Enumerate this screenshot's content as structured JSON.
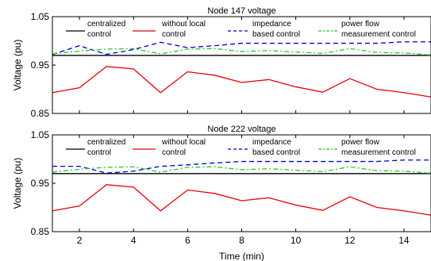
{
  "chart_data": [
    {
      "type": "line",
      "title": "Node 147 voltage",
      "ylabel": "Voltage (pu)",
      "xlabel": "",
      "xlim": [
        1,
        15
      ],
      "ylim": [
        0.85,
        1.05
      ],
      "yticks": [
        0.85,
        0.95,
        1.05
      ],
      "ytick_labels": [
        "0.85",
        "0.95",
        "1.05"
      ],
      "xticks": [
        2,
        4,
        6,
        8,
        10,
        12,
        14
      ],
      "show_xtick_labels": false,
      "grid": false,
      "legend": "top",
      "x": [
        1,
        2,
        3,
        4,
        5,
        6,
        7,
        8,
        9,
        10,
        11,
        12,
        13,
        14,
        15
      ],
      "series": [
        {
          "name": [
            "centralized",
            "control"
          ],
          "color": "#000000",
          "dash": "solid",
          "values": [
            0.97,
            0.97,
            0.97,
            0.97,
            0.97,
            0.97,
            0.97,
            0.97,
            0.97,
            0.97,
            0.97,
            0.97,
            0.97,
            0.97,
            0.97
          ]
        },
        {
          "name": [
            "without local",
            "control"
          ],
          "color": "#e8000b",
          "dash": "solid",
          "values": [
            0.893,
            0.903,
            0.947,
            0.942,
            0.893,
            0.936,
            0.929,
            0.914,
            0.92,
            0.905,
            0.894,
            0.922,
            0.9,
            0.893,
            0.884
          ]
        },
        {
          "name": [
            "impedance",
            "based control"
          ],
          "color": "#0000d0",
          "dash": "dashed",
          "values": [
            0.972,
            0.99,
            0.972,
            0.982,
            0.997,
            0.986,
            0.99,
            0.995,
            0.995,
            0.995,
            0.995,
            0.995,
            0.995,
            0.998,
            0.998
          ]
        },
        {
          "name": [
            "power flow",
            "measurement control"
          ],
          "color": "#22cc22",
          "dash": "dashdot",
          "values": [
            0.973,
            0.979,
            0.983,
            0.984,
            0.973,
            0.983,
            0.984,
            0.978,
            0.98,
            0.977,
            0.974,
            0.984,
            0.976,
            0.975,
            0.971
          ]
        }
      ]
    },
    {
      "type": "line",
      "title": "Node 222 voltage",
      "ylabel": "Voltage (pu)",
      "xlabel": "Time (min)",
      "xlim": [
        1,
        15
      ],
      "ylim": [
        0.85,
        1.05
      ],
      "yticks": [
        0.85,
        0.95,
        1.05
      ],
      "ytick_labels": [
        "0.85",
        "0.95",
        "1.05"
      ],
      "xticks": [
        2,
        4,
        6,
        8,
        10,
        12,
        14
      ],
      "xtick_labels": [
        "2",
        "4",
        "6",
        "8",
        "10",
        "12",
        "14"
      ],
      "show_xtick_labels": true,
      "grid": false,
      "legend": "top",
      "x": [
        1,
        2,
        3,
        4,
        5,
        6,
        7,
        8,
        9,
        10,
        11,
        12,
        13,
        14,
        15
      ],
      "series": [
        {
          "name": [
            "centralized",
            "control"
          ],
          "color": "#000000",
          "dash": "solid",
          "values": [
            0.97,
            0.97,
            0.97,
            0.97,
            0.97,
            0.97,
            0.97,
            0.97,
            0.97,
            0.97,
            0.97,
            0.97,
            0.97,
            0.97,
            0.97
          ]
        },
        {
          "name": [
            "without local",
            "control"
          ],
          "color": "#e8000b",
          "dash": "solid",
          "values": [
            0.893,
            0.903,
            0.947,
            0.942,
            0.893,
            0.936,
            0.929,
            0.914,
            0.92,
            0.905,
            0.894,
            0.922,
            0.9,
            0.893,
            0.884
          ]
        },
        {
          "name": [
            "impedance",
            "based control"
          ],
          "color": "#0000d0",
          "dash": "dashed",
          "values": [
            0.985,
            0.985,
            0.971,
            0.975,
            0.985,
            0.988,
            0.992,
            0.995,
            0.995,
            0.995,
            0.995,
            0.995,
            0.995,
            0.998,
            0.998
          ]
        },
        {
          "name": [
            "power flow",
            "measurement control"
          ],
          "color": "#22cc22",
          "dash": "dashdot",
          "values": [
            0.973,
            0.979,
            0.983,
            0.984,
            0.973,
            0.983,
            0.984,
            0.978,
            0.98,
            0.977,
            0.974,
            0.984,
            0.976,
            0.975,
            0.971
          ]
        }
      ]
    }
  ]
}
